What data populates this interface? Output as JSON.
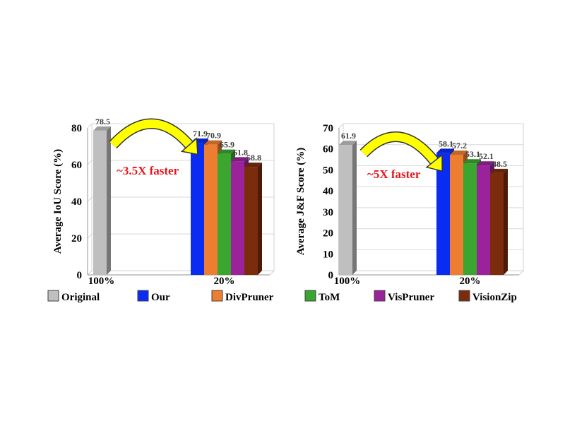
{
  "legend": [
    {
      "label": "Original",
      "color": "#bfbfbf"
    },
    {
      "label": "Our",
      "color": "#0a2cf2"
    },
    {
      "label": "DivPruner",
      "color": "#ed7d31"
    },
    {
      "label": "ToM",
      "color": "#3aa52f"
    },
    {
      "label": "VisPruner",
      "color": "#9a239b"
    },
    {
      "label": "VisionZip",
      "color": "#7b2c0c"
    }
  ],
  "chart_data": [
    {
      "type": "bar",
      "ylabel": "Average IoU Score  (%)",
      "ylim": [
        0,
        80
      ],
      "yticks": [
        0,
        20,
        40,
        60,
        80
      ],
      "grid": true,
      "groups": [
        {
          "label": "100%",
          "series": [
            "Original"
          ],
          "values": [
            78.5
          ],
          "value_labels": [
            "78.5"
          ]
        },
        {
          "label": "20%",
          "series": [
            "Our",
            "DivPruner",
            "ToM",
            "VisPruner",
            "VisionZip"
          ],
          "values": [
            71.9,
            70.9,
            65.9,
            61.8,
            58.8
          ],
          "value_labels": [
            "71.9",
            "70.9",
            "65.9",
            "61.8",
            "58.8"
          ]
        }
      ],
      "annotation": "~3.5X faster"
    },
    {
      "type": "bar",
      "ylabel": "Average J&F Score (%)",
      "ylim": [
        0,
        70
      ],
      "yticks": [
        0,
        10,
        20,
        30,
        40,
        50,
        60,
        70
      ],
      "grid": true,
      "groups": [
        {
          "label": "100%",
          "series": [
            "Original"
          ],
          "values": [
            61.9
          ],
          "value_labels": [
            "61.9"
          ]
        },
        {
          "label": "20%",
          "series": [
            "Our",
            "DivPruner",
            "ToM",
            "VisPruner",
            "VisionZip"
          ],
          "values": [
            58.1,
            57.2,
            53.1,
            52.1,
            48.5
          ],
          "value_labels": [
            "58.1",
            "57.2",
            "53.1",
            "52.1",
            "48.5"
          ]
        }
      ],
      "annotation": "~5X faster"
    }
  ]
}
